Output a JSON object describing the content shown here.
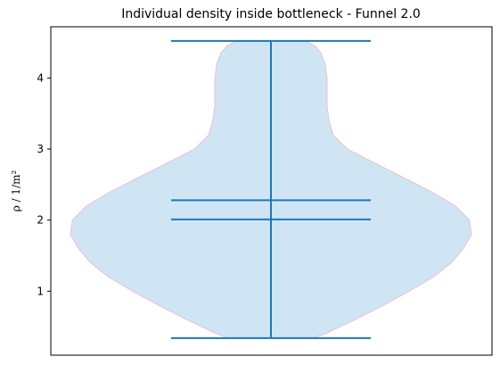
{
  "chart_data": {
    "type": "violin",
    "title": "Individual density inside bottleneck - Funnel 2.0",
    "xlabel": "",
    "ylabel": "ρ / 1/m²",
    "ylim": [
      0.1,
      4.72
    ],
    "yticks": [
      1,
      2,
      3,
      4
    ],
    "grid": false,
    "violin": {
      "min": 0.34,
      "max": 4.52,
      "mean": 2.28,
      "median": 2.01,
      "fill_color": "#cfe5f3",
      "edge_color": "#e7c1d5",
      "line_color": "#1f77b4",
      "density_profile": [
        {
          "y": 0.34,
          "w": 0.21
        },
        {
          "y": 0.4,
          "w": 0.27
        },
        {
          "y": 0.6,
          "w": 0.42
        },
        {
          "y": 0.8,
          "w": 0.56
        },
        {
          "y": 1.0,
          "w": 0.69
        },
        {
          "y": 1.2,
          "w": 0.81
        },
        {
          "y": 1.4,
          "w": 0.9
        },
        {
          "y": 1.6,
          "w": 0.96
        },
        {
          "y": 1.8,
          "w": 1.0
        },
        {
          "y": 2.0,
          "w": 0.99
        },
        {
          "y": 2.2,
          "w": 0.92
        },
        {
          "y": 2.4,
          "w": 0.8
        },
        {
          "y": 2.6,
          "w": 0.66
        },
        {
          "y": 2.8,
          "w": 0.52
        },
        {
          "y": 3.0,
          "w": 0.38
        },
        {
          "y": 3.2,
          "w": 0.31
        },
        {
          "y": 3.4,
          "w": 0.29
        },
        {
          "y": 3.6,
          "w": 0.28
        },
        {
          "y": 3.8,
          "w": 0.28
        },
        {
          "y": 4.0,
          "w": 0.28
        },
        {
          "y": 4.2,
          "w": 0.27
        },
        {
          "y": 4.35,
          "w": 0.25
        },
        {
          "y": 4.45,
          "w": 0.22
        },
        {
          "y": 4.52,
          "w": 0.17
        }
      ]
    }
  }
}
